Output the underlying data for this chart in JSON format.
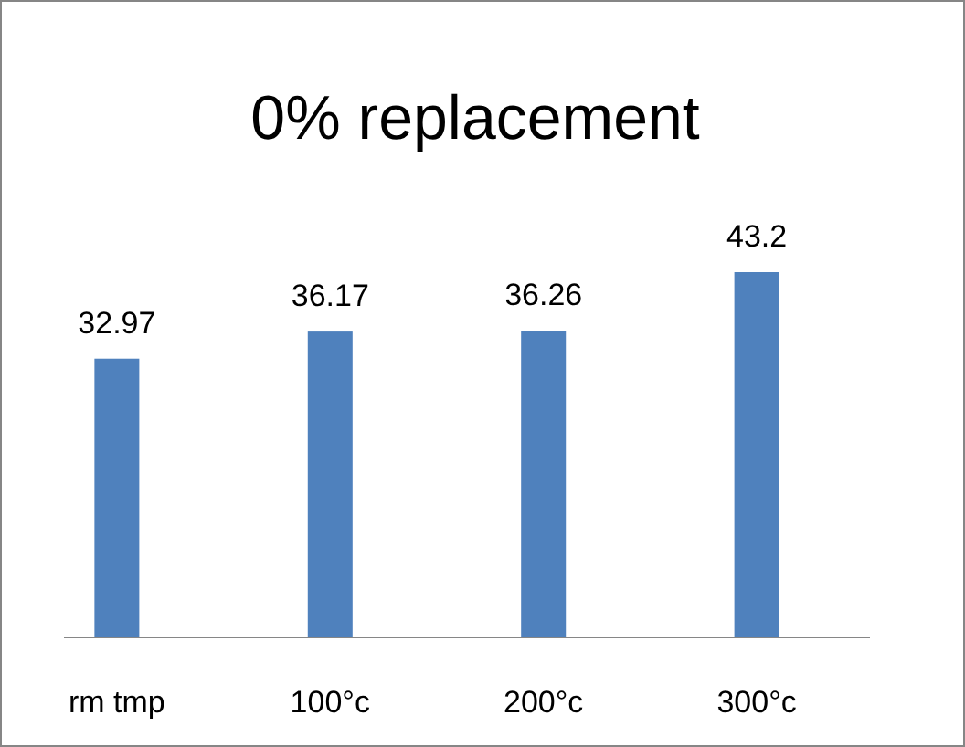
{
  "chart_data": {
    "type": "bar",
    "title": "0% replacement",
    "categories": [
      "rm tmp",
      "100°c",
      "200°c",
      "300°c"
    ],
    "values": [
      32.97,
      36.17,
      36.26,
      43.2
    ],
    "color": "#4f81bd",
    "data_labels": true
  }
}
